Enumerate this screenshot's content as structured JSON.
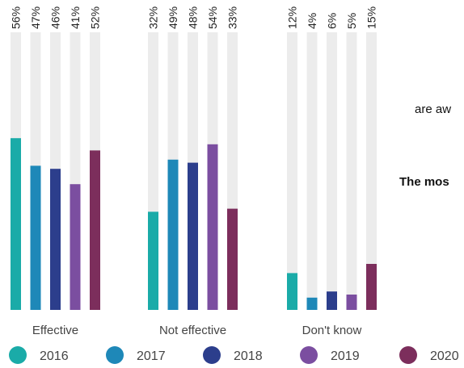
{
  "chart_data": {
    "type": "bar",
    "categories": [
      "Effective",
      "Not effective",
      "Don't know"
    ],
    "series": [
      {
        "name": "2016",
        "values": [
          56,
          32,
          12
        ]
      },
      {
        "name": "2017",
        "values": [
          47,
          49,
          4
        ]
      },
      {
        "name": "2018",
        "values": [
          46,
          48,
          6
        ]
      },
      {
        "name": "2019",
        "values": [
          41,
          54,
          5
        ]
      },
      {
        "name": "2020",
        "values": [
          52,
          33,
          15
        ]
      }
    ],
    "value_labels": [
      [
        "56%",
        "32%",
        "12%"
      ],
      [
        "47%",
        "49%",
        "4%"
      ],
      [
        "46%",
        "48%",
        "6%"
      ],
      [
        "41%",
        "54%",
        "5%"
      ],
      [
        "52%",
        "33%",
        "15%"
      ]
    ],
    "ylim": [
      0,
      100
    ],
    "legend_position": "bottom",
    "colors": [
      "#1aaba8",
      "#1e88b8",
      "#2c3e8c",
      "#7b4ea0",
      "#7c2e5c"
    ],
    "track_color": "#ececec",
    "title": "",
    "xlabel": "",
    "ylabel": ""
  },
  "side_text": {
    "line1": "are aw",
    "line2": "The mos"
  }
}
